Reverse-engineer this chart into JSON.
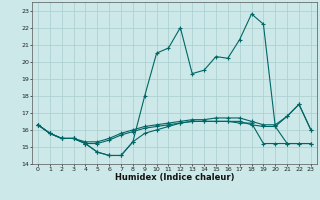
{
  "title": "",
  "xlabel": "Humidex (Indice chaleur)",
  "xlim": [
    -0.5,
    23.5
  ],
  "ylim": [
    14,
    23.5
  ],
  "yticks": [
    14,
    15,
    16,
    17,
    18,
    19,
    20,
    21,
    22,
    23
  ],
  "xticks": [
    0,
    1,
    2,
    3,
    4,
    5,
    6,
    7,
    8,
    9,
    10,
    11,
    12,
    13,
    14,
    15,
    16,
    17,
    18,
    19,
    20,
    21,
    22,
    23
  ],
  "bg_color": "#cce8e8",
  "line_color": "#006666",
  "grid_color": "#aacece",
  "lines": [
    [
      16.3,
      15.8,
      15.5,
      15.5,
      15.2,
      14.7,
      14.5,
      14.5,
      15.3,
      18.0,
      20.5,
      20.8,
      22.0,
      19.3,
      19.5,
      20.3,
      20.2,
      21.3,
      22.8,
      22.2,
      16.2,
      16.8,
      17.5,
      16.0
    ],
    [
      16.3,
      15.8,
      15.5,
      15.5,
      15.3,
      15.3,
      15.5,
      15.8,
      16.0,
      16.2,
      16.3,
      16.4,
      16.5,
      16.6,
      16.6,
      16.7,
      16.7,
      16.7,
      16.5,
      16.3,
      16.3,
      16.8,
      17.5,
      16.0
    ],
    [
      16.3,
      15.8,
      15.5,
      15.5,
      15.2,
      15.2,
      15.4,
      15.7,
      15.9,
      16.1,
      16.2,
      16.3,
      16.4,
      16.5,
      16.5,
      16.5,
      16.5,
      16.5,
      16.3,
      16.2,
      16.2,
      15.2,
      15.2,
      15.2
    ],
    [
      16.3,
      15.8,
      15.5,
      15.5,
      15.2,
      14.7,
      14.5,
      14.5,
      15.3,
      15.8,
      16.0,
      16.2,
      16.4,
      16.5,
      16.5,
      16.5,
      16.5,
      16.4,
      16.4,
      15.2,
      15.2,
      15.2,
      15.2,
      15.2
    ]
  ]
}
